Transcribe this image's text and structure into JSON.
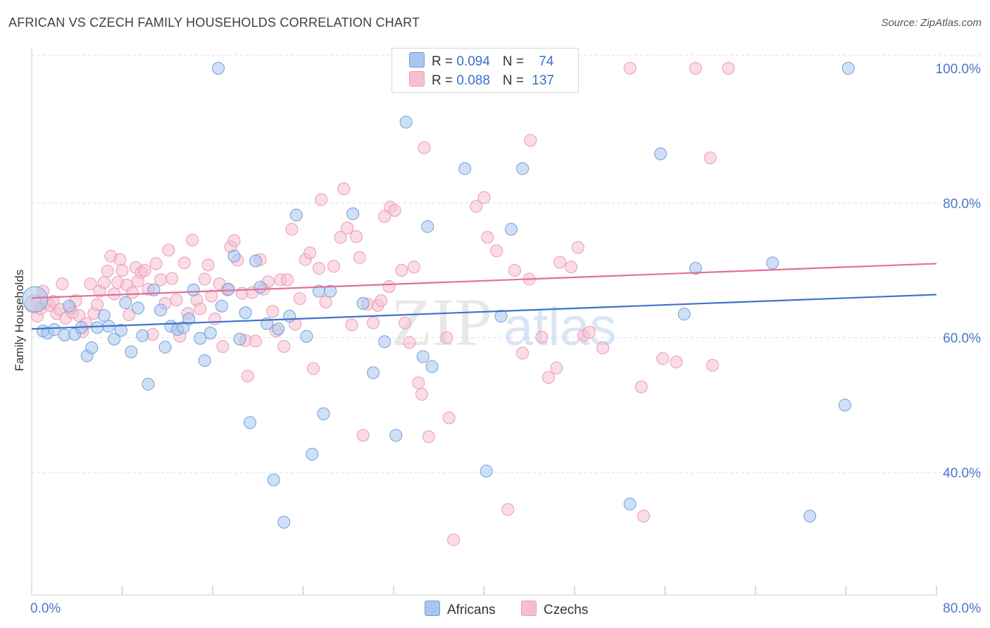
{
  "title": "AFRICAN VS CZECH FAMILY HOUSEHOLDS CORRELATION CHART",
  "source": "Source: ZipAtlas.com",
  "watermark": {
    "zip": "ZIP",
    "atlas": "atlas"
  },
  "legend_top": {
    "africans": {
      "r_label": "R = ",
      "r_value": "0.094",
      "n_label": "N = ",
      "n_value": "74"
    },
    "czechs": {
      "r_label": "R = ",
      "r_value": "0.088",
      "n_label": "N = ",
      "n_value": "137"
    }
  },
  "legend_bottom": {
    "africans": "Africans",
    "czechs": "Czechs"
  },
  "colors": {
    "africans_fill": "#a8c6ef",
    "africans_stroke": "#6f9fd8",
    "africans_line": "#3d73c9",
    "czechs_fill": "#f6bfd0",
    "czechs_stroke": "#ec9ab5",
    "czechs_line": "#e0709a",
    "axis_text": "#4a78c8",
    "grid": "#dddddd"
  },
  "chart_data": {
    "type": "scatter",
    "title": "AFRICAN VS CZECH FAMILY HOUSEHOLDS CORRELATION CHART",
    "xlabel": "",
    "ylabel": "Family Households",
    "xlim": [
      0,
      80
    ],
    "ylim": [
      20,
      100
    ],
    "x_tick_labels": [
      "0.0%",
      "80.0%"
    ],
    "y_ticks": [
      40,
      60,
      80,
      100
    ],
    "y_tick_labels": [
      "40.0%",
      "60.0%",
      "80.0%",
      "100.0%"
    ],
    "grid": true,
    "series": [
      {
        "name": "Africans",
        "r": 0.094,
        "n": 74,
        "trend": [
          [
            0,
            61.3
          ],
          [
            80,
            66.4
          ]
        ],
        "points": [
          [
            0.3,
            65.7,
            20
          ],
          [
            1.0,
            61.0,
            10
          ],
          [
            1.4,
            60.7,
            10
          ],
          [
            2.0,
            61.2,
            10
          ],
          [
            2.9,
            60.4,
            10
          ],
          [
            3.3,
            64.7,
            10
          ],
          [
            3.8,
            60.5,
            10
          ],
          [
            4.4,
            61.5,
            10
          ],
          [
            4.9,
            57.3,
            10
          ],
          [
            5.3,
            58.5,
            10
          ],
          [
            5.8,
            61.5,
            10
          ],
          [
            6.4,
            63.3,
            10
          ],
          [
            6.8,
            61.7,
            10
          ],
          [
            7.3,
            59.8,
            10
          ],
          [
            7.9,
            61.1,
            10
          ],
          [
            8.3,
            65.2,
            10
          ],
          [
            8.8,
            57.9,
            10
          ],
          [
            9.4,
            64.4,
            10
          ],
          [
            9.8,
            60.3,
            10
          ],
          [
            10.3,
            53.1,
            10
          ],
          [
            10.8,
            67.1,
            10
          ],
          [
            11.4,
            64.1,
            10
          ],
          [
            11.8,
            58.6,
            10
          ],
          [
            12.3,
            61.7,
            10
          ],
          [
            12.9,
            61.2,
            10
          ],
          [
            13.4,
            61.5,
            10
          ],
          [
            13.9,
            62.8,
            10
          ],
          [
            14.3,
            67.1,
            10
          ],
          [
            14.9,
            59.9,
            10
          ],
          [
            15.3,
            56.6,
            10
          ],
          [
            15.8,
            60.7,
            10
          ],
          [
            16.5,
            100.0,
            10
          ],
          [
            16.8,
            64.7,
            10
          ],
          [
            17.4,
            67.2,
            10
          ],
          [
            17.9,
            72.1,
            10
          ],
          [
            18.4,
            59.8,
            10
          ],
          [
            18.9,
            63.7,
            10
          ],
          [
            19.3,
            47.4,
            10
          ],
          [
            19.8,
            71.4,
            10
          ],
          [
            20.2,
            67.5,
            10
          ],
          [
            20.8,
            62.1,
            10
          ],
          [
            21.4,
            38.9,
            10
          ],
          [
            21.8,
            61.3,
            10
          ],
          [
            22.3,
            32.6,
            10
          ],
          [
            22.8,
            63.2,
            10
          ],
          [
            23.4,
            78.2,
            10
          ],
          [
            24.3,
            60.2,
            10
          ],
          [
            24.8,
            42.7,
            10
          ],
          [
            25.4,
            66.9,
            10
          ],
          [
            25.8,
            48.7,
            10
          ],
          [
            26.4,
            66.9,
            10
          ],
          [
            28.4,
            78.4,
            10
          ],
          [
            29.3,
            65.1,
            10
          ],
          [
            30.2,
            54.8,
            10
          ],
          [
            31.2,
            59.4,
            10
          ],
          [
            32.2,
            45.5,
            10
          ],
          [
            33.1,
            92.0,
            10
          ],
          [
            34.6,
            57.2,
            10
          ],
          [
            35.0,
            76.5,
            10
          ],
          [
            35.4,
            55.7,
            10
          ],
          [
            38.3,
            85.1,
            10
          ],
          [
            40.2,
            40.2,
            10
          ],
          [
            41.5,
            63.2,
            10
          ],
          [
            42.4,
            76.1,
            10
          ],
          [
            43.4,
            85.1,
            10
          ],
          [
            52.9,
            35.3,
            10
          ],
          [
            55.6,
            87.3,
            10
          ],
          [
            57.7,
            63.5,
            10
          ],
          [
            58.7,
            70.3,
            10
          ],
          [
            65.5,
            71.1,
            10
          ],
          [
            68.8,
            33.5,
            10
          ],
          [
            71.9,
            50.0,
            10
          ],
          [
            72.2,
            100.0,
            10
          ]
        ]
      },
      {
        "name": "Czechs",
        "r": 0.088,
        "n": 137,
        "trend": [
          [
            0,
            65.9
          ],
          [
            80,
            71.0
          ]
        ],
        "points": [
          [
            0.2,
            65.0,
            14
          ],
          [
            0.5,
            63.2,
            10
          ],
          [
            0.8,
            64.3,
            10
          ],
          [
            1.0,
            66.9,
            10
          ],
          [
            1.3,
            65.2,
            10
          ],
          [
            1.6,
            64.8,
            10
          ],
          [
            1.9,
            65.4,
            10
          ],
          [
            2.2,
            63.6,
            10
          ],
          [
            2.5,
            64.2,
            10
          ],
          [
            2.7,
            68.0,
            10
          ],
          [
            3.0,
            62.9,
            10
          ],
          [
            3.4,
            64.4,
            10
          ],
          [
            3.6,
            63.7,
            10
          ],
          [
            3.9,
            65.5,
            10
          ],
          [
            4.2,
            63.3,
            10
          ],
          [
            4.5,
            60.9,
            10
          ],
          [
            4.8,
            62.1,
            10
          ],
          [
            5.2,
            68.0,
            10
          ],
          [
            5.5,
            63.6,
            10
          ],
          [
            5.8,
            64.9,
            10
          ],
          [
            6.0,
            66.9,
            10
          ],
          [
            6.4,
            68.2,
            10
          ],
          [
            6.7,
            69.9,
            10
          ],
          [
            7.0,
            72.1,
            10
          ],
          [
            7.3,
            66.5,
            10
          ],
          [
            7.6,
            68.2,
            10
          ],
          [
            7.8,
            71.6,
            10
          ],
          [
            8.0,
            70.0,
            10
          ],
          [
            8.4,
            67.8,
            10
          ],
          [
            8.6,
            63.4,
            10
          ],
          [
            8.9,
            66.7,
            10
          ],
          [
            9.2,
            70.4,
            10
          ],
          [
            9.4,
            68.4,
            10
          ],
          [
            9.7,
            69.7,
            10
          ],
          [
            10.0,
            70.0,
            10
          ],
          [
            10.3,
            67.2,
            10
          ],
          [
            10.7,
            60.5,
            10
          ],
          [
            11.0,
            71.0,
            10
          ],
          [
            11.4,
            68.6,
            10
          ],
          [
            11.8,
            65.1,
            10
          ],
          [
            12.1,
            73.0,
            10
          ],
          [
            12.4,
            68.8,
            10
          ],
          [
            12.8,
            65.6,
            10
          ],
          [
            13.1,
            60.2,
            10
          ],
          [
            13.5,
            71.1,
            10
          ],
          [
            13.8,
            63.6,
            10
          ],
          [
            14.2,
            74.5,
            10
          ],
          [
            14.6,
            65.6,
            10
          ],
          [
            14.9,
            64.3,
            10
          ],
          [
            15.3,
            68.7,
            10
          ],
          [
            15.6,
            70.8,
            10
          ],
          [
            15.9,
            66.2,
            10
          ],
          [
            16.2,
            62.8,
            10
          ],
          [
            16.6,
            68.0,
            10
          ],
          [
            16.9,
            58.7,
            10
          ],
          [
            17.3,
            67.1,
            10
          ],
          [
            17.6,
            73.5,
            10
          ],
          [
            17.9,
            74.4,
            10
          ],
          [
            18.2,
            71.5,
            10
          ],
          [
            18.6,
            66.6,
            10
          ],
          [
            18.9,
            59.6,
            10
          ],
          [
            19.1,
            54.3,
            10
          ],
          [
            19.5,
            66.7,
            10
          ],
          [
            19.8,
            59.5,
            10
          ],
          [
            20.2,
            71.6,
            10
          ],
          [
            20.5,
            67.2,
            10
          ],
          [
            20.9,
            68.3,
            10
          ],
          [
            21.3,
            63.9,
            10
          ],
          [
            21.6,
            61.0,
            10
          ],
          [
            22.0,
            68.6,
            10
          ],
          [
            22.3,
            58.7,
            10
          ],
          [
            22.6,
            68.6,
            10
          ],
          [
            23.0,
            76.1,
            10
          ],
          [
            23.3,
            62.0,
            10
          ],
          [
            23.7,
            65.8,
            10
          ],
          [
            24.2,
            71.6,
            10
          ],
          [
            24.6,
            72.6,
            10
          ],
          [
            24.9,
            55.4,
            10
          ],
          [
            25.4,
            70.3,
            10
          ],
          [
            25.6,
            80.5,
            10
          ],
          [
            26.0,
            65.3,
            10
          ],
          [
            26.7,
            70.6,
            10
          ],
          [
            27.3,
            74.9,
            10
          ],
          [
            27.6,
            82.1,
            10
          ],
          [
            27.9,
            76.3,
            10
          ],
          [
            28.3,
            61.9,
            10
          ],
          [
            28.7,
            75.0,
            10
          ],
          [
            29.0,
            71.9,
            10
          ],
          [
            29.3,
            45.5,
            10
          ],
          [
            29.7,
            65.0,
            10
          ],
          [
            30.2,
            62.2,
            10
          ],
          [
            30.6,
            64.8,
            10
          ],
          [
            30.9,
            65.5,
            10
          ],
          [
            31.2,
            78.0,
            10
          ],
          [
            31.6,
            67.6,
            10
          ],
          [
            31.7,
            79.4,
            10
          ],
          [
            32.1,
            78.9,
            10
          ],
          [
            32.7,
            70.0,
            10
          ],
          [
            33.0,
            62.2,
            10
          ],
          [
            33.4,
            59.3,
            10
          ],
          [
            33.8,
            70.5,
            10
          ],
          [
            34.2,
            53.3,
            10
          ],
          [
            34.5,
            51.6,
            10
          ],
          [
            34.7,
            88.2,
            10
          ],
          [
            35.1,
            45.3,
            10
          ],
          [
            36.7,
            60.0,
            10
          ],
          [
            36.9,
            48.1,
            10
          ],
          [
            37.3,
            30.0,
            10
          ],
          [
            38.2,
            100.0,
            10
          ],
          [
            39.3,
            79.5,
            10
          ],
          [
            40.0,
            80.8,
            10
          ],
          [
            40.3,
            74.9,
            10
          ],
          [
            41.1,
            72.9,
            10
          ],
          [
            42.1,
            34.5,
            10
          ],
          [
            42.7,
            70.0,
            10
          ],
          [
            43.4,
            57.7,
            10
          ],
          [
            44.0,
            68.7,
            10
          ],
          [
            44.1,
            89.3,
            10
          ],
          [
            45.1,
            60.1,
            10
          ],
          [
            45.7,
            54.1,
            10
          ],
          [
            46.4,
            55.5,
            10
          ],
          [
            46.7,
            71.2,
            10
          ],
          [
            47.7,
            70.5,
            10
          ],
          [
            48.3,
            73.4,
            10
          ],
          [
            48.8,
            60.3,
            10
          ],
          [
            49.3,
            60.8,
            10
          ],
          [
            50.5,
            58.5,
            10
          ],
          [
            52.9,
            100.0,
            10
          ],
          [
            53.9,
            52.7,
            10
          ],
          [
            54.1,
            33.5,
            10
          ],
          [
            55.8,
            56.9,
            10
          ],
          [
            57.0,
            56.4,
            10
          ],
          [
            58.7,
            100.0,
            10
          ],
          [
            60.0,
            86.7,
            10
          ],
          [
            60.2,
            55.9,
            10
          ],
          [
            61.6,
            100.0,
            10
          ]
        ]
      }
    ]
  }
}
